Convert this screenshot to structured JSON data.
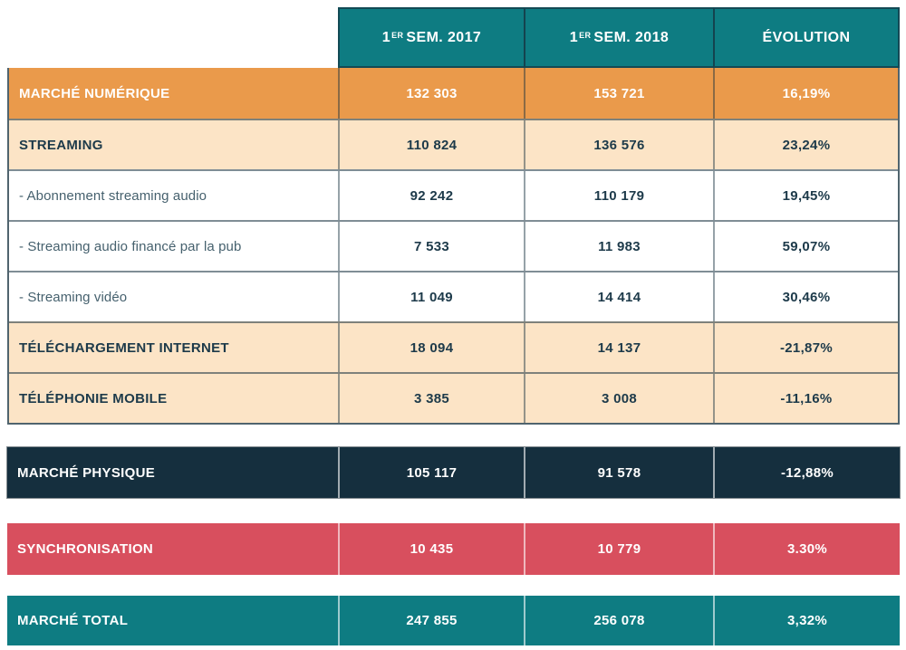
{
  "colors": {
    "header_teal": "#0e7c82",
    "orange": "#ea9a4b",
    "peach": "#fce4c6",
    "navy": "#152f3e",
    "red": "#d84f5e",
    "total_teal": "#0e7c82",
    "text_dark": "#1d3a4a",
    "text_white": "#ffffff"
  },
  "table": {
    "columns": [
      {
        "prefix": "1",
        "sup": "ER",
        "rest": "SEM. 2017"
      },
      {
        "prefix": "1",
        "sup": "ER",
        "rest": "SEM. 2018"
      },
      {
        "prefix": "",
        "sup": "",
        "rest": "ÉVOLUTION"
      }
    ],
    "rows": [
      {
        "label": "MARCHÉ NUMÉRIQUE",
        "v2017": "132 303",
        "v2018": "153 721",
        "evolution": "16,19%"
      },
      {
        "label": "STREAMING",
        "v2017": "110 824",
        "v2018": "136 576",
        "evolution": "23,24%"
      },
      {
        "label": "- Abonnement streaming audio",
        "v2017": "92 242",
        "v2018": "110 179",
        "evolution": "19,45%"
      },
      {
        "label": "- Streaming audio financé par la pub",
        "v2017": "7 533",
        "v2018": "11 983",
        "evolution": "59,07%"
      },
      {
        "label": "- Streaming vidéo",
        "v2017": "11 049",
        "v2018": "14 414",
        "evolution": "30,46%"
      },
      {
        "label": "TÉLÉCHARGEMENT INTERNET",
        "v2017": "18 094",
        "v2018": "14 137",
        "evolution": "-21,87%"
      },
      {
        "label": "TÉLÉPHONIE MOBILE",
        "v2017": "3 385",
        "v2018": "3 008",
        "evolution": "-11,16%"
      }
    ],
    "summary": [
      {
        "label": "MARCHÉ PHYSIQUE",
        "v2017": "105 117",
        "v2018": "91 578",
        "evolution": "-12,88%"
      },
      {
        "label": "SYNCHRONISATION",
        "v2017": "10 435",
        "v2018": "10 779",
        "evolution": "3.30%"
      },
      {
        "label": "MARCHÉ TOTAL",
        "v2017": "247 855",
        "v2018": "256 078",
        "evolution": "3,32%"
      }
    ]
  }
}
